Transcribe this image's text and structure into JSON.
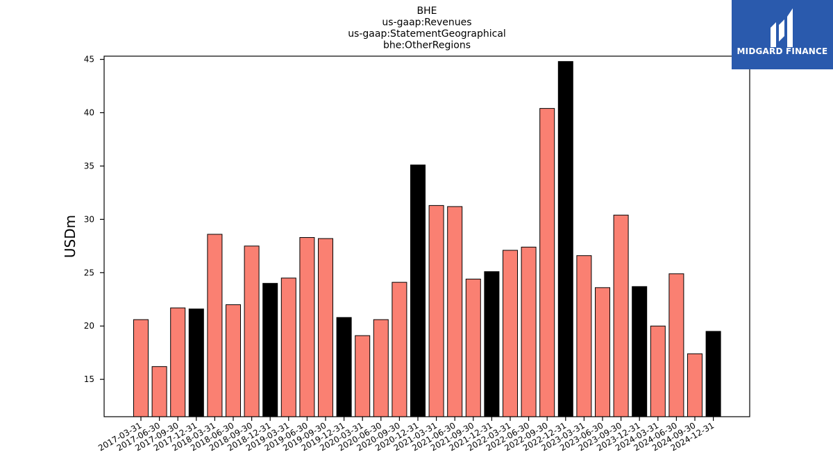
{
  "logo": {
    "text": "MIDGARD FINANCE",
    "color": "#2a5aad"
  },
  "chart_data": {
    "type": "bar",
    "title": [
      "BHE",
      "us-gaap:Revenues",
      "us-gaap:StatementGeographical",
      "bhe:OtherRegions"
    ],
    "xlabel": "",
    "ylabel": "USDm",
    "ylim": [
      11.5,
      45.3
    ],
    "yticks": [
      15,
      20,
      25,
      30,
      35,
      40,
      45
    ],
    "grid": false,
    "colors": {
      "quarter": "#fa8072",
      "year_end": "#000000",
      "edge": "#000000"
    },
    "categories": [
      "2017-03-31",
      "2017-06-30",
      "2017-09-30",
      "2017-12-31",
      "2018-03-31",
      "2018-06-30",
      "2018-09-30",
      "2018-12-31",
      "2019-03-31",
      "2019-06-30",
      "2019-09-30",
      "2019-12-31",
      "2020-03-31",
      "2020-06-30",
      "2020-09-30",
      "2020-12-31",
      "2021-03-31",
      "2021-06-30",
      "2021-09-30",
      "2021-12-31",
      "2022-03-31",
      "2022-06-30",
      "2022-09-30",
      "2022-12-31",
      "2023-03-31",
      "2023-06-30",
      "2023-09-30",
      "2023-12-31",
      "2024-03-31",
      "2024-06-30",
      "2024-09-30",
      "2024-12-31"
    ],
    "values": [
      20.6,
      16.2,
      21.7,
      21.6,
      28.6,
      22.0,
      27.5,
      24.0,
      24.5,
      28.3,
      28.2,
      20.8,
      19.1,
      20.6,
      24.1,
      35.1,
      31.3,
      31.2,
      24.4,
      25.1,
      27.1,
      27.4,
      40.4,
      44.8,
      26.6,
      23.6,
      30.4,
      23.7,
      20.0,
      24.9,
      17.4,
      19.5
    ],
    "year_end_flags": [
      0,
      0,
      0,
      1,
      0,
      0,
      0,
      1,
      0,
      0,
      0,
      1,
      0,
      0,
      0,
      1,
      0,
      0,
      0,
      1,
      0,
      0,
      0,
      1,
      0,
      0,
      0,
      1,
      0,
      0,
      0,
      1
    ]
  }
}
